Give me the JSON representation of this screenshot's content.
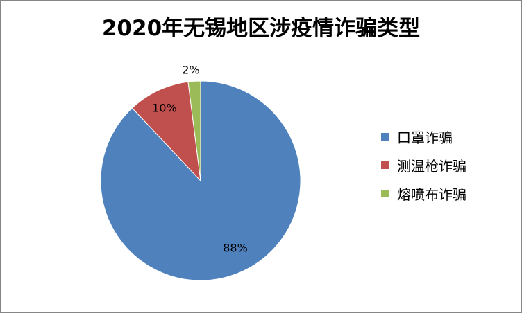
{
  "chart_data": {
    "type": "pie",
    "title": "2020年无锡地区涉疫情诈骗类型",
    "categories": [
      "口罩诈骗",
      "测温枪诈骗",
      "熔喷布诈骗"
    ],
    "values": [
      88,
      10,
      2
    ],
    "data_labels": [
      "88%",
      "10%",
      "2%"
    ],
    "colors": [
      "#4F81BD",
      "#C0504D",
      "#9BBB59"
    ],
    "legend_position": "right"
  }
}
